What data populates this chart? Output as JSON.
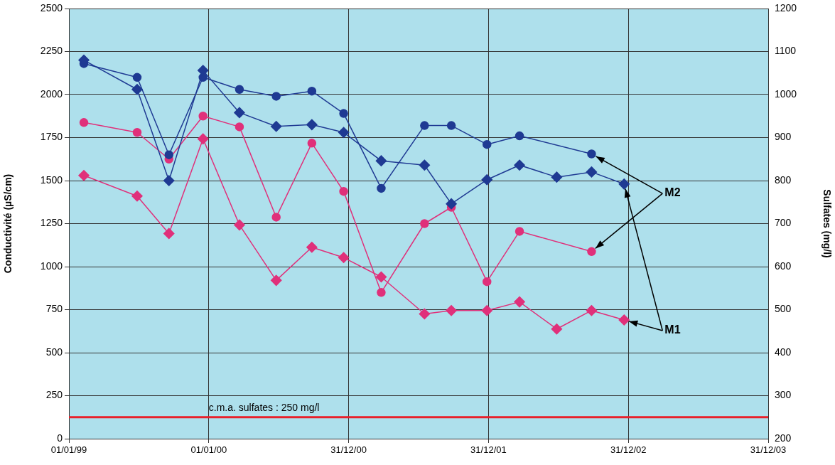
{
  "chart_data": {
    "type": "line",
    "ylabel": "Conductivité (µS/cm)",
    "y2label": "Sulfates (mg/l)",
    "xlim": [
      "1999-01-01",
      "2003-12-31"
    ],
    "xticks": [
      {
        "value": "1999-01-01",
        "label": "01/01/99"
      },
      {
        "value": "2000-01-01",
        "label": "01/01/00"
      },
      {
        "value": "2000-12-31",
        "label": "31/12/00"
      },
      {
        "value": "2001-12-31",
        "label": "31/12/01"
      },
      {
        "value": "2002-12-31",
        "label": "31/12/02"
      },
      {
        "value": "2003-12-31",
        "label": "31/12/03"
      }
    ],
    "ylim": [
      0,
      2500
    ],
    "yticks": [
      0,
      250,
      500,
      750,
      1000,
      1250,
      1500,
      1750,
      2000,
      2250,
      2500
    ],
    "y2lim": [
      200,
      1200
    ],
    "y2ticks": [
      200,
      300,
      400,
      500,
      600,
      700,
      800,
      900,
      1000,
      1100,
      1200
    ],
    "grid": true,
    "legend": false,
    "series": [
      {
        "color": "#1f3a93",
        "marker": "circle",
        "x": [
          "1999-02-09",
          "1999-06-28",
          "1999-09-19",
          "1999-12-17",
          "2000-03-21",
          "2000-06-25",
          "2000-09-26",
          "2000-12-18",
          "2001-03-26",
          "2001-07-17",
          "2001-09-25",
          "2001-12-27",
          "2002-03-22",
          "2002-09-26"
        ],
        "values": [
          2180,
          2100,
          1650,
          2100,
          2030,
          1990,
          2020,
          1890,
          1455,
          1820,
          1820,
          1710,
          1760,
          1655
        ]
      },
      {
        "color": "#1f3a93",
        "marker": "diamond",
        "x": [
          "1999-02-09",
          "1999-06-28",
          "1999-09-19",
          "1999-12-17",
          "2000-03-21",
          "2000-06-25",
          "2000-09-26",
          "2000-12-18",
          "2001-03-26",
          "2001-07-17",
          "2001-09-25",
          "2001-12-27",
          "2002-03-22",
          "2002-06-27",
          "2002-09-26",
          "2002-12-20"
        ],
        "values": [
          2200,
          2030,
          1500,
          2140,
          1895,
          1815,
          1825,
          1780,
          1615,
          1590,
          1365,
          1505,
          1590,
          1520,
          1550,
          1480
        ]
      },
      {
        "color": "#e0307a",
        "marker": "circle",
        "axis": "y2",
        "x": [
          "1999-02-09",
          "1999-06-28",
          "1999-09-19",
          "1999-12-17",
          "2000-03-21",
          "2000-06-25",
          "2000-09-26",
          "2000-12-18",
          "2001-03-26",
          "2001-07-17",
          "2001-09-25",
          "2001-12-27",
          "2002-03-22",
          "2002-09-26"
        ],
        "values": [
          935,
          912,
          850,
          950,
          925,
          715,
          887,
          775,
          540,
          700,
          738,
          565,
          682,
          635
        ]
      },
      {
        "color": "#e0307a",
        "marker": "diamond",
        "axis": "y2",
        "x": [
          "1999-02-09",
          "1999-06-28",
          "1999-09-19",
          "1999-12-17",
          "2000-03-21",
          "2000-06-25",
          "2000-09-26",
          "2000-12-18",
          "2001-03-26",
          "2001-07-17",
          "2001-09-25",
          "2001-12-27",
          "2002-03-22",
          "2002-06-27",
          "2002-09-26",
          "2002-12-20"
        ],
        "values": [
          812,
          764,
          677,
          897,
          697,
          568,
          645,
          621,
          576,
          490,
          498,
          498,
          518,
          455,
          498,
          476
        ]
      }
    ],
    "ref_lines": [
      {
        "axis": "y2",
        "value": 250,
        "label": "c.m.a. sulfates : 250 mg/l",
        "color": "#e8202a"
      }
    ],
    "annotations": [
      {
        "text": "M2",
        "x": "2002-09-26",
        "y": 1655
      },
      {
        "text": "M1",
        "x": "2002-12-20",
        "y": 1480
      }
    ]
  }
}
